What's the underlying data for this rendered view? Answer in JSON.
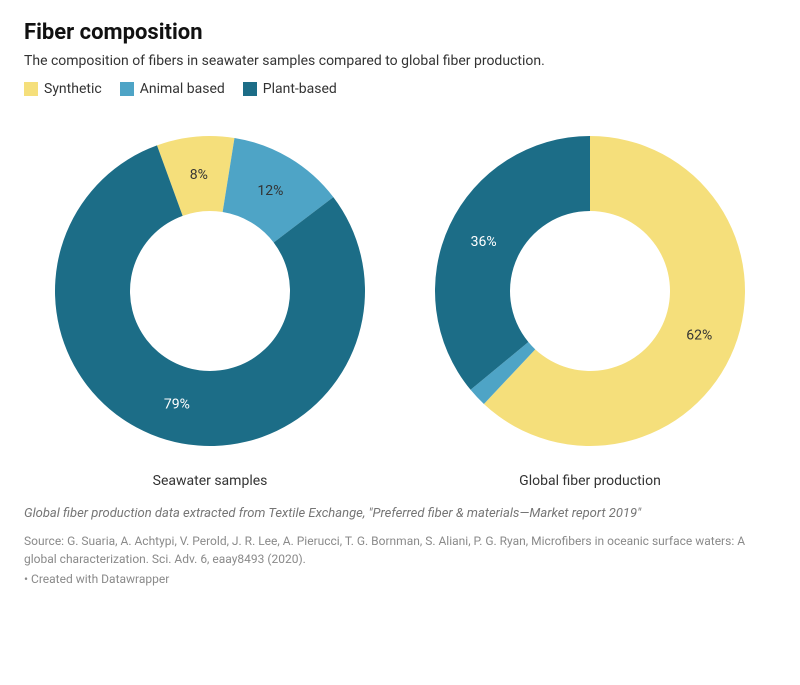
{
  "title": "Fiber composition",
  "subtitle": "The composition of fibers in seawater samples compared to global fiber production.",
  "legend": [
    {
      "label": "Synthetic",
      "color": "#f5df7b"
    },
    {
      "label": "Animal based",
      "color": "#4ea4c6"
    },
    {
      "label": "Plant-based",
      "color": "#1c6d87"
    }
  ],
  "charts": {
    "seawater": {
      "label": "Seawater samples",
      "type": "donut",
      "slices": [
        {
          "name": "Synthetic",
          "value": 8,
          "color": "#f5df7b",
          "text_color": "#333333"
        },
        {
          "name": "Animal based",
          "value": 12,
          "color": "#4ea4c6",
          "text_color": "#333333"
        },
        {
          "name": "Plant-based",
          "value": 79,
          "color": "#1c6d87",
          "text_color": "#ffffff"
        }
      ],
      "inner_radius": 80,
      "outer_radius": 155,
      "start_angle_deg": -20,
      "size": 340
    },
    "global": {
      "label": "Global fiber production",
      "type": "donut",
      "slices": [
        {
          "name": "Synthetic",
          "value": 62,
          "color": "#f5df7b",
          "text_color": "#333333"
        },
        {
          "name": "Animal based",
          "value": 2,
          "color": "#4ea4c6",
          "text_color": "#333333"
        },
        {
          "name": "Plant-based",
          "value": 36,
          "color": "#1c6d87",
          "text_color": "#ffffff"
        }
      ],
      "inner_radius": 80,
      "outer_radius": 155,
      "start_angle_deg": 0,
      "size": 340
    }
  },
  "note": "Global fiber production data extracted from Textile Exchange, \"Preferred fiber & materials—Market report 2019\"",
  "source": "Source: G. Suaria, A. Achtypi, V. Perold, J. R. Lee, A. Pierucci, T. G. Bornman, S. Aliani, P. G. Ryan, Microfibers in oceanic surface waters: A global characterization. Sci. Adv. 6, eaay8493 (2020).",
  "credit": "• Created with Datawrapper",
  "background_color": "#ffffff",
  "label_min_value": 5
}
